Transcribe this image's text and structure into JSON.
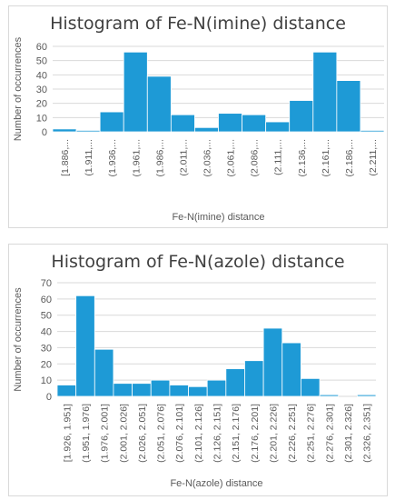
{
  "colors": {
    "bar": "#1e9ad6",
    "grid": "#d9d9d9",
    "text": "#595959",
    "title": "#404040"
  },
  "chart_data": [
    {
      "type": "bar",
      "title": "Histogram of Fe-N(imine) distance",
      "xlabel": "Fe-N(imine) distance",
      "ylabel": "Number of occurrences",
      "ylim": [
        0,
        60
      ],
      "yticks": [
        0,
        10,
        20,
        30,
        40,
        50,
        60
      ],
      "grid": true,
      "categories": [
        "[1.886,...",
        "(1.911,...",
        "(1.936,...",
        "(1.961,...",
        "(1.986,...",
        "(2.011,...",
        "(2.036,...",
        "(2.061,...",
        "(2.086,...",
        "(2.111,...",
        "(2.136,...",
        "(2.161,...",
        "(2.186,...",
        "(2.211,..."
      ],
      "values": [
        2,
        1,
        14,
        56,
        39,
        12,
        3,
        13,
        12,
        7,
        22,
        56,
        36,
        1
      ]
    },
    {
      "type": "bar",
      "title": "Histogram of Fe-N(azole) distance",
      "xlabel": "Fe-N(azole) distance",
      "ylabel": "Number of occurrences",
      "ylim": [
        0,
        70
      ],
      "yticks": [
        0,
        10,
        20,
        30,
        40,
        50,
        60,
        70
      ],
      "grid": true,
      "categories": [
        "[1.926, 1.951]",
        "(1.951, 1.976]",
        "(1.976, 2.001]",
        "(2.001, 2.026]",
        "(2.026, 2.051]",
        "(2.051, 2.076]",
        "(2.076, 2.101]",
        "(2.101, 2.126]",
        "(2.126, 2.151]",
        "(2.151, 2.176]",
        "(2.176, 2.201]",
        "(2.201, 2.226]",
        "(2.226, 2.251]",
        "(2.251, 2.276]",
        "(2.276, 2.301]",
        "(2.301, 2.326]",
        "(2.326, 2.351]"
      ],
      "values": [
        7,
        62,
        29,
        8,
        8,
        10,
        7,
        6,
        10,
        17,
        22,
        42,
        33,
        11,
        1,
        0,
        1
      ]
    }
  ]
}
